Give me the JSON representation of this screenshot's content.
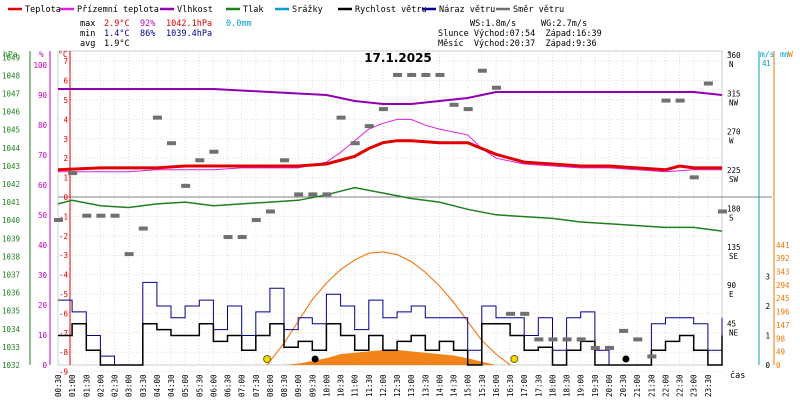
{
  "legend": [
    {
      "label": "Teplota",
      "color": "#e00000"
    },
    {
      "label": "Přízemní teplota",
      "color": "#e020e0"
    },
    {
      "label": "Vlhkost",
      "color": "#9000b0"
    },
    {
      "label": "Tlak",
      "color": "#208020"
    },
    {
      "label": "Srážky",
      "color": "#00a0c8"
    },
    {
      "label": "Rychlost větru",
      "color": "#000000"
    },
    {
      "label": "Náraz větru",
      "color": "#000090"
    },
    {
      "label": "Směr větru",
      "color": "#707070"
    }
  ],
  "stats": {
    "max": {
      "label": "max",
      "temp": "2.9°C",
      "hum": "92%",
      "press": "1042.1hPa",
      "rain": "0.0mm"
    },
    "min": {
      "label": "min",
      "temp": "1.4°C",
      "hum": "86%",
      "press": "1039.4hPa"
    },
    "avg": {
      "label": "avg",
      "temp": "1.9°C"
    }
  },
  "info": {
    "ws": "WS:1.8m/s",
    "wg": "WG:2.7m/s",
    "sun": "Slunce Východ:07:54  Západ:16:39",
    "moon": "Měsíc  Východ:20:37  Západ:9:36"
  },
  "title": "17.1.2025",
  "xlabel": "čas",
  "colors": {
    "temp": "#e00000",
    "ground": "#e020e0",
    "hum": "#9000b0",
    "press": "#208020",
    "wind": "#000000",
    "gust": "#000090",
    "dir": "#707070",
    "rad": "#f07800",
    "sunline": "#f08020",
    "axisC": "#e00000",
    "axisPct": "#c000c0",
    "axisHpa": "#208020",
    "axisMs": "#00a0c8",
    "axisW": "#f07800"
  },
  "axes": {
    "hpa": {
      "label": "hPa",
      "ticks": [
        "1049",
        "1048",
        "1047",
        "1046",
        "1045",
        "1044",
        "1043",
        "1042",
        "1041",
        "1040",
        "1039",
        "1038",
        "1037",
        "1036",
        "1035",
        "1034",
        "1033",
        "1032"
      ]
    },
    "pct": {
      "label": "%",
      "ticks": [
        "100",
        "90",
        "80",
        "70",
        "60",
        "50",
        "40",
        "30",
        "20",
        "10",
        "0"
      ]
    },
    "c": {
      "label": "°C",
      "ticks": [
        "7",
        "6",
        "5",
        "4",
        "3",
        "2",
        "1",
        "0",
        "-1",
        "-2",
        "-3",
        "-4",
        "-5",
        "-6",
        "-7",
        "-8",
        "-9"
      ]
    },
    "deg": {
      "label": "°",
      "ticks": [
        {
          "v": "360",
          "d": "N"
        },
        {
          "v": "315",
          "d": "NW"
        },
        {
          "v": "270",
          "d": "W"
        },
        {
          "v": "225",
          "d": "SW"
        },
        {
          "v": "180",
          "d": "S"
        },
        {
          "v": "135",
          "d": "SE"
        },
        {
          "v": "90",
          "d": "E"
        },
        {
          "v": "45",
          "d": "NE"
        }
      ]
    },
    "ms": {
      "label": "m/s",
      "top": "4",
      "ticks": [
        "3",
        "2",
        "1",
        "0"
      ]
    },
    "mm": {
      "label": "mm",
      "top": "1"
    },
    "w": {
      "label": "W",
      "ticks": [
        "441",
        "392",
        "343",
        "294",
        "245",
        "196",
        "147",
        "98",
        "49",
        "0"
      ]
    }
  },
  "chart_data": {
    "type": "line",
    "title": "17.1.2025",
    "x_ticks": [
      "00:30",
      "01:00",
      "01:30",
      "02:00",
      "02:30",
      "03:00",
      "03:30",
      "04:00",
      "04:30",
      "05:00",
      "05:30",
      "06:00",
      "06:30",
      "07:00",
      "07:30",
      "08:00",
      "08:30",
      "09:00",
      "09:30",
      "10:00",
      "10:30",
      "11:00",
      "11:30",
      "12:00",
      "12:30",
      "13:00",
      "13:30",
      "14:00",
      "14:30",
      "15:00",
      "15:30",
      "16:00",
      "16:30",
      "17:00",
      "17:30",
      "18:00",
      "18:30",
      "19:00",
      "19:30",
      "20:00",
      "20:30",
      "21:00",
      "21:30",
      "22:00",
      "22:30",
      "23:00",
      "23:30"
    ],
    "ylim_c": [
      -9,
      7.5
    ],
    "series": [
      {
        "name": "Teplota",
        "unit": "°C",
        "x": [
          0.5,
          2,
          3,
          4,
          5,
          6,
          7,
          8,
          9,
          10,
          11,
          11.5,
          12,
          12.5,
          13,
          14,
          15,
          15.5,
          16,
          17,
          18,
          19,
          20,
          21,
          22,
          22.5,
          23,
          24
        ],
        "values": [
          1.4,
          1.5,
          1.5,
          1.5,
          1.6,
          1.6,
          1.6,
          1.6,
          1.6,
          1.7,
          2.1,
          2.5,
          2.8,
          2.9,
          2.9,
          2.8,
          2.8,
          2.5,
          2.2,
          1.8,
          1.7,
          1.6,
          1.6,
          1.5,
          1.4,
          1.6,
          1.5,
          1.5
        ]
      },
      {
        "name": "Přízemní teplota",
        "unit": "°C",
        "x": [
          0.5,
          2,
          3,
          4,
          5,
          6,
          7,
          8,
          9,
          10,
          10.5,
          11,
          11.5,
          12,
          12.5,
          13,
          13.5,
          14,
          15,
          15.5,
          16,
          17,
          18,
          19,
          20,
          21,
          22,
          23,
          24
        ],
        "values": [
          1.3,
          1.3,
          1.3,
          1.4,
          1.4,
          1.4,
          1.5,
          1.5,
          1.5,
          1.8,
          2.3,
          2.9,
          3.5,
          3.8,
          4.0,
          4.0,
          3.7,
          3.5,
          3.2,
          2.5,
          2.0,
          1.7,
          1.6,
          1.5,
          1.5,
          1.4,
          1.3,
          1.4,
          1.4
        ]
      },
      {
        "name": "Vlhkost",
        "unit": "%",
        "x": [
          0.5,
          2,
          4,
          6,
          8,
          10,
          11,
          12,
          13,
          14,
          15,
          16,
          17,
          18,
          19,
          20,
          21,
          22,
          23,
          24
        ],
        "values": [
          92,
          92,
          92,
          92,
          91,
          90,
          88,
          87,
          87,
          88,
          89,
          91,
          91,
          91,
          91,
          91,
          91,
          91,
          91,
          90
        ]
      },
      {
        "name": "Tlak",
        "unit": "hPa",
        "x": [
          0.5,
          1,
          2,
          3,
          4,
          5,
          6,
          7,
          8,
          9,
          10,
          10.5,
          11,
          12,
          13,
          14,
          15,
          16,
          17,
          18,
          19,
          20,
          21,
          22,
          23,
          24
        ],
        "values": [
          1040.9,
          1041.1,
          1040.8,
          1040.7,
          1040.9,
          1041.0,
          1040.8,
          1040.9,
          1041.0,
          1041.1,
          1041.4,
          1041.6,
          1041.8,
          1041.5,
          1041.2,
          1041.0,
          1040.6,
          1040.3,
          1040.2,
          1040.1,
          1039.9,
          1039.8,
          1039.7,
          1039.6,
          1039.6,
          1039.4
        ]
      },
      {
        "name": "Rychlost větru",
        "unit": "m/s",
        "x": [
          0.5,
          1,
          1.5,
          2,
          2.5,
          3,
          3.5,
          4,
          4.5,
          5,
          5.5,
          6,
          6.5,
          7,
          7.5,
          8,
          8.5,
          9,
          9.5,
          10,
          10.5,
          11,
          11.5,
          12,
          12.5,
          13,
          13.5,
          14,
          14.5,
          15,
          15.5,
          16,
          16.5,
          17,
          17.5,
          18,
          18.5,
          19,
          19.5,
          20,
          20.5,
          21,
          21.5,
          22,
          22.5,
          23,
          23.5,
          24
        ],
        "values": [
          1.0,
          1.4,
          0.5,
          0,
          0,
          0,
          1.4,
          1.2,
          1.0,
          1.0,
          1.4,
          0.8,
          1.0,
          0.5,
          1.0,
          1.4,
          0.6,
          0.8,
          0.5,
          1.4,
          1.0,
          0.5,
          1.0,
          0.5,
          0.8,
          1.0,
          0.5,
          0.8,
          0.5,
          0,
          1.4,
          1.4,
          1.0,
          0.5,
          0.6,
          0,
          0.5,
          0.8,
          0,
          0,
          0,
          0,
          0.5,
          0.8,
          1.0,
          0.5,
          0,
          1.0
        ]
      },
      {
        "name": "Náraz větru",
        "unit": "m/s",
        "x": [
          0.5,
          1,
          1.5,
          2,
          2.5,
          3,
          3.5,
          4,
          4.5,
          5,
          5.5,
          6,
          6.5,
          7,
          7.5,
          8,
          8.5,
          9,
          9.5,
          10,
          10.5,
          11,
          11.5,
          12,
          12.5,
          13,
          13.5,
          14,
          14.5,
          15,
          15.5,
          16,
          16.5,
          17,
          17.5,
          18,
          18.5,
          19,
          19.5,
          20,
          20.5,
          21,
          21.5,
          22,
          22.5,
          23,
          23.5,
          24
        ],
        "values": [
          2.2,
          1.8,
          1.0,
          0.3,
          0,
          0,
          2.8,
          2.0,
          1.6,
          2.0,
          2.2,
          1.2,
          2.0,
          1.0,
          1.8,
          2.6,
          1.2,
          1.6,
          1.4,
          2.4,
          2.0,
          1.2,
          2.2,
          1.6,
          1.8,
          2.0,
          1.6,
          1.6,
          1.6,
          0.5,
          2.0,
          1.6,
          1.6,
          1.0,
          1.6,
          0.5,
          1.6,
          1.8,
          0.5,
          0,
          0,
          0,
          1.4,
          1.6,
          1.6,
          1.4,
          0.5,
          1.6
        ]
      },
      {
        "name": "Směr větru",
        "unit": "°",
        "x": [
          0.5,
          1,
          1.5,
          2,
          2.5,
          3,
          3.5,
          4,
          4.5,
          5,
          5.5,
          6,
          6.5,
          7,
          7.5,
          8,
          8.5,
          9,
          9.5,
          10,
          10.5,
          11,
          11.5,
          12,
          12.5,
          13,
          13.5,
          14,
          14.5,
          15,
          15.5,
          16,
          16.5,
          17,
          17.5,
          18,
          18.5,
          19,
          19.5,
          20,
          20.5,
          21,
          21.5,
          22,
          22.5,
          23,
          23.5,
          24
        ],
        "values": [
          170,
          225,
          175,
          175,
          175,
          130,
          160,
          290,
          260,
          210,
          240,
          250,
          150,
          150,
          170,
          180,
          240,
          200,
          200,
          200,
          290,
          260,
          280,
          300,
          340,
          340,
          340,
          340,
          305,
          300,
          345,
          325,
          60,
          60,
          30,
          30,
          30,
          30,
          20,
          20,
          40,
          30,
          10,
          310,
          310,
          220,
          330,
          180
        ]
      },
      {
        "name": "Sluneční záření",
        "unit": "W",
        "x": [
          8.5,
          9,
          9.5,
          10,
          10.5,
          11,
          11.5,
          12,
          12.5,
          13,
          13.5,
          14,
          14.5,
          15,
          15.5,
          16
        ],
        "values": [
          0,
          5,
          15,
          25,
          40,
          45,
          50,
          55,
          55,
          50,
          45,
          40,
          35,
          25,
          12,
          0
        ]
      },
      {
        "name": "Teoretické záření",
        "unit": "W",
        "x": [
          7.9,
          8.5,
          9,
          9.5,
          10,
          10.5,
          11,
          11.5,
          12,
          12.5,
          13,
          13.5,
          14,
          14.5,
          15,
          15.5,
          16,
          16.5
        ],
        "values": [
          0,
          80,
          160,
          240,
          300,
          350,
          385,
          410,
          415,
          405,
          380,
          340,
          290,
          230,
          160,
          90,
          40,
          0
        ]
      }
    ]
  }
}
